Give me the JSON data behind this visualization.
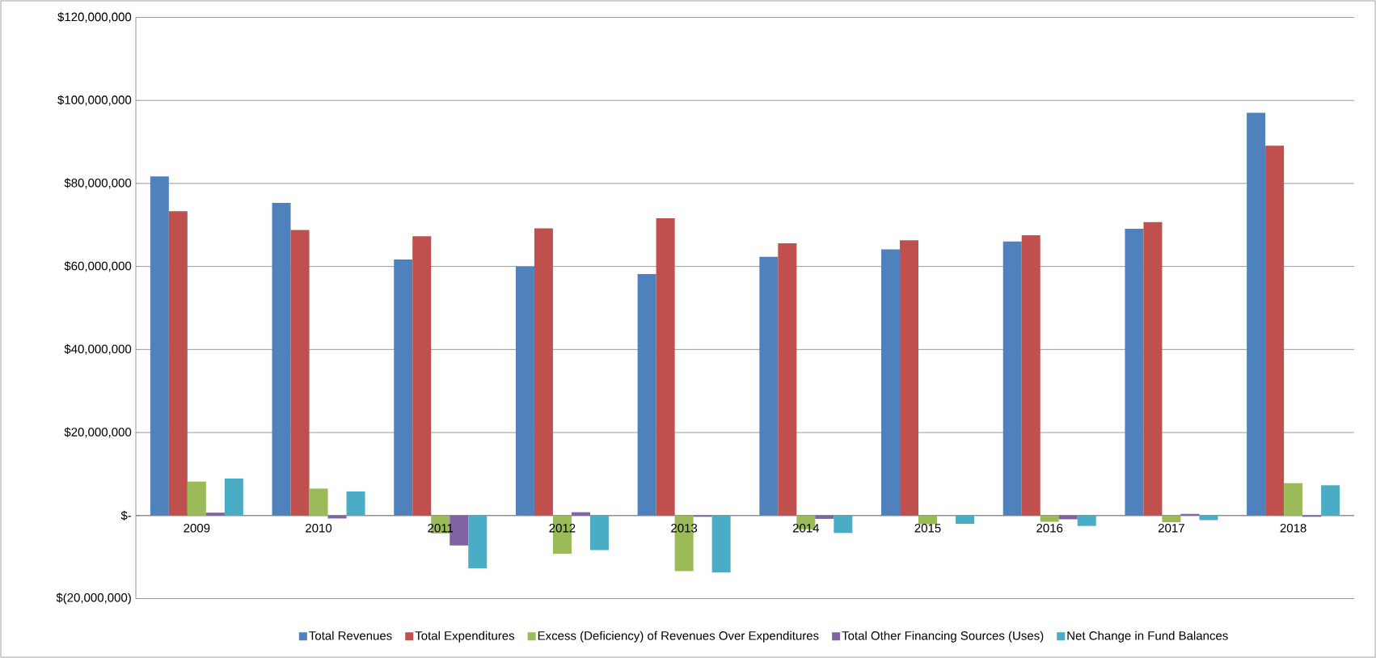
{
  "chart_data": {
    "type": "bar",
    "categories": [
      "2009",
      "2010",
      "2011",
      "2012",
      "2013",
      "2014",
      "2015",
      "2016",
      "2017",
      "2018"
    ],
    "series": [
      {
        "name": "Total Revenues",
        "color": "#4f81bd",
        "values": [
          81700000,
          75300000,
          61700000,
          60000000,
          58200000,
          62300000,
          64100000,
          66000000,
          69100000,
          97000000
        ]
      },
      {
        "name": "Total Expenditures",
        "color": "#c0504d",
        "values": [
          73300000,
          68800000,
          67300000,
          69200000,
          71600000,
          65600000,
          66300000,
          67500000,
          70700000,
          89100000
        ]
      },
      {
        "name": "Excess (Deficiency) of Revenues Over Expenditures",
        "color": "#9bbb59",
        "values": [
          8200000,
          6500000,
          -4300000,
          -9200000,
          -13400000,
          -3300000,
          -2100000,
          -1500000,
          -1600000,
          7800000
        ]
      },
      {
        "name": "Total Other Financing Sources (Uses)",
        "color": "#8064a2",
        "values": [
          700000,
          -700000,
          -7200000,
          800000,
          -300000,
          -800000,
          0,
          -900000,
          400000,
          -300000
        ]
      },
      {
        "name": "Net Change in Fund Balances",
        "color": "#4bacc6",
        "values": [
          8900000,
          5800000,
          -12700000,
          -8300000,
          -13700000,
          -4200000,
          -2000000,
          -2500000,
          -1100000,
          7300000
        ]
      }
    ],
    "ylim": [
      -20000000,
      120000000
    ],
    "yticks": [
      {
        "value": -20000000,
        "label": "$(20,000,000)"
      },
      {
        "value": 0,
        "label": "$-"
      },
      {
        "value": 20000000,
        "label": "$20,000,000"
      },
      {
        "value": 40000000,
        "label": "$40,000,000"
      },
      {
        "value": 60000000,
        "label": "$60,000,000"
      },
      {
        "value": 80000000,
        "label": "$80,000,000"
      },
      {
        "value": 100000000,
        "label": "$100,000,000"
      },
      {
        "value": 120000000,
        "label": "$120,000,000"
      }
    ],
    "grid": "y",
    "legend": "bottom"
  }
}
